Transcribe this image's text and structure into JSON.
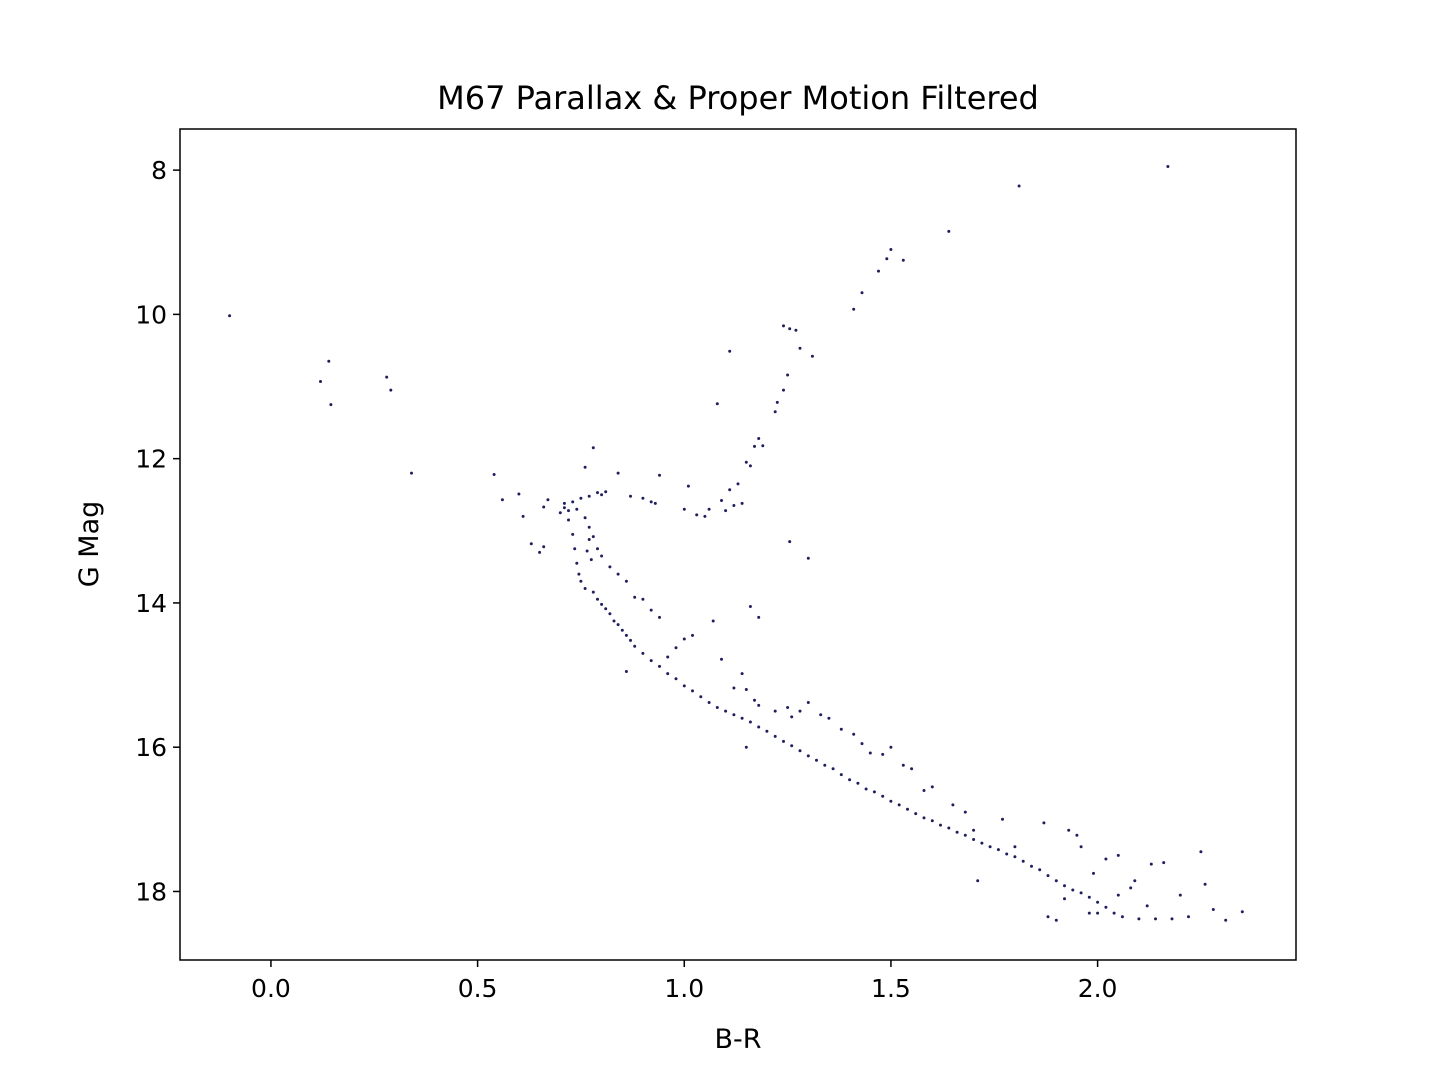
{
  "chart_data": {
    "type": "scatter",
    "title": "M67 Parallax & Proper Motion Filtered",
    "xlabel": "B-R",
    "ylabel": "G Mag",
    "xlim": [
      -0.22,
      2.48
    ],
    "ylim": [
      18.95,
      7.43
    ],
    "y_inverted": true,
    "xticks": [
      "0.0",
      "0.5",
      "1.0",
      "1.5",
      "2.0"
    ],
    "yticks": [
      "8",
      "10",
      "12",
      "14",
      "16",
      "18"
    ],
    "grid": false,
    "marker_color": "#1f1f5e",
    "series": [
      {
        "points": [
          [
            -0.1,
            10.02
          ],
          [
            0.12,
            10.93
          ],
          [
            0.14,
            10.65
          ],
          [
            0.145,
            11.25
          ],
          [
            0.28,
            10.87
          ],
          [
            0.29,
            11.05
          ],
          [
            0.34,
            12.2
          ],
          [
            0.54,
            12.22
          ],
          [
            0.56,
            12.57
          ],
          [
            0.6,
            12.49
          ],
          [
            0.61,
            12.8
          ],
          [
            0.63,
            13.18
          ],
          [
            0.65,
            13.3
          ],
          [
            0.66,
            13.22
          ],
          [
            0.66,
            12.67
          ],
          [
            0.67,
            12.57
          ],
          [
            0.7,
            12.75
          ],
          [
            0.71,
            12.68
          ],
          [
            0.73,
            12.6
          ],
          [
            0.75,
            12.55
          ],
          [
            0.77,
            12.52
          ],
          [
            0.79,
            12.47
          ],
          [
            0.81,
            12.46
          ],
          [
            0.76,
            12.12
          ],
          [
            0.78,
            11.85
          ],
          [
            0.8,
            12.5
          ],
          [
            0.84,
            12.2
          ],
          [
            0.87,
            12.52
          ],
          [
            0.9,
            12.55
          ],
          [
            0.92,
            12.6
          ],
          [
            0.93,
            12.62
          ],
          [
            0.94,
            12.23
          ],
          [
            1.01,
            12.38
          ],
          [
            1.0,
            12.7
          ],
          [
            1.03,
            12.78
          ],
          [
            1.05,
            12.8
          ],
          [
            1.06,
            12.7
          ],
          [
            1.1,
            12.72
          ],
          [
            1.12,
            12.65
          ],
          [
            1.14,
            12.62
          ],
          [
            1.09,
            12.58
          ],
          [
            1.11,
            12.43
          ],
          [
            1.13,
            12.35
          ],
          [
            1.15,
            12.05
          ],
          [
            1.16,
            12.1
          ],
          [
            1.17,
            11.83
          ],
          [
            1.18,
            11.72
          ],
          [
            1.19,
            11.82
          ],
          [
            1.22,
            11.35
          ],
          [
            1.225,
            11.22
          ],
          [
            1.24,
            11.05
          ],
          [
            1.25,
            10.84
          ],
          [
            1.08,
            11.24
          ],
          [
            1.11,
            10.51
          ],
          [
            1.24,
            10.16
          ],
          [
            1.255,
            10.2
          ],
          [
            1.27,
            10.22
          ],
          [
            1.28,
            10.47
          ],
          [
            1.31,
            10.58
          ],
          [
            1.41,
            9.93
          ],
          [
            1.43,
            9.7
          ],
          [
            1.47,
            9.4
          ],
          [
            1.49,
            9.23
          ],
          [
            1.5,
            9.1
          ],
          [
            1.53,
            9.25
          ],
          [
            1.64,
            8.85
          ],
          [
            1.81,
            8.22
          ],
          [
            2.17,
            7.95
          ],
          [
            1.255,
            13.15
          ],
          [
            1.3,
            13.38
          ],
          [
            0.72,
            12.85
          ],
          [
            0.73,
            13.05
          ],
          [
            0.735,
            13.25
          ],
          [
            0.74,
            13.45
          ],
          [
            0.745,
            13.6
          ],
          [
            0.75,
            13.7
          ],
          [
            0.76,
            13.8
          ],
          [
            0.765,
            13.28
          ],
          [
            0.77,
            13.12
          ],
          [
            0.775,
            13.4
          ],
          [
            0.78,
            13.85
          ],
          [
            0.79,
            13.95
          ],
          [
            0.8,
            14.02
          ],
          [
            0.81,
            14.08
          ],
          [
            0.82,
            14.15
          ],
          [
            0.83,
            14.25
          ],
          [
            0.84,
            14.3
          ],
          [
            0.85,
            14.38
          ],
          [
            0.86,
            14.45
          ],
          [
            0.87,
            14.52
          ],
          [
            0.88,
            14.6
          ],
          [
            0.9,
            14.7
          ],
          [
            0.92,
            14.8
          ],
          [
            0.94,
            14.88
          ],
          [
            0.96,
            14.98
          ],
          [
            0.98,
            15.05
          ],
          [
            1.0,
            15.15
          ],
          [
            1.02,
            15.22
          ],
          [
            1.04,
            15.3
          ],
          [
            1.06,
            15.38
          ],
          [
            1.08,
            15.45
          ],
          [
            1.1,
            15.5
          ],
          [
            1.12,
            15.55
          ],
          [
            1.14,
            15.6
          ],
          [
            1.16,
            15.65
          ],
          [
            1.18,
            15.72
          ],
          [
            1.2,
            15.78
          ],
          [
            1.22,
            15.85
          ],
          [
            1.24,
            15.92
          ],
          [
            1.26,
            15.98
          ],
          [
            1.28,
            16.05
          ],
          [
            1.3,
            16.12
          ],
          [
            1.32,
            16.18
          ],
          [
            1.34,
            16.25
          ],
          [
            1.36,
            16.3
          ],
          [
            1.38,
            16.38
          ],
          [
            1.4,
            16.45
          ],
          [
            1.42,
            16.5
          ],
          [
            1.44,
            16.58
          ],
          [
            1.46,
            16.62
          ],
          [
            1.48,
            16.68
          ],
          [
            1.5,
            16.75
          ],
          [
            1.52,
            16.8
          ],
          [
            1.54,
            16.86
          ],
          [
            1.56,
            16.92
          ],
          [
            1.58,
            16.98
          ],
          [
            1.6,
            17.02
          ],
          [
            1.62,
            17.08
          ],
          [
            1.64,
            17.12
          ],
          [
            1.66,
            17.18
          ],
          [
            1.68,
            17.22
          ],
          [
            1.7,
            17.28
          ],
          [
            1.72,
            17.33
          ],
          [
            1.74,
            17.38
          ],
          [
            1.76,
            17.42
          ],
          [
            1.78,
            17.48
          ],
          [
            1.8,
            17.52
          ],
          [
            1.82,
            17.58
          ],
          [
            1.84,
            17.65
          ],
          [
            1.86,
            17.7
          ],
          [
            1.88,
            17.78
          ],
          [
            1.9,
            17.85
          ],
          [
            1.92,
            17.92
          ],
          [
            1.94,
            17.98
          ],
          [
            1.96,
            18.02
          ],
          [
            1.98,
            18.08
          ],
          [
            2.0,
            18.15
          ],
          [
            2.02,
            18.22
          ],
          [
            2.04,
            18.3
          ],
          [
            2.06,
            18.35
          ],
          [
            1.9,
            18.4
          ],
          [
            2.1,
            18.38
          ],
          [
            2.14,
            18.38
          ],
          [
            2.18,
            18.38
          ],
          [
            2.22,
            18.35
          ],
          [
            2.26,
            17.9
          ],
          [
            2.25,
            17.45
          ],
          [
            2.28,
            18.25
          ],
          [
            2.31,
            18.4
          ],
          [
            2.35,
            18.28
          ],
          [
            2.2,
            18.05
          ],
          [
            2.16,
            17.6
          ],
          [
            2.13,
            17.62
          ],
          [
            2.09,
            17.85
          ],
          [
            2.05,
            17.5
          ],
          [
            2.02,
            17.55
          ],
          [
            1.99,
            17.75
          ],
          [
            1.96,
            17.38
          ],
          [
            1.95,
            17.22
          ],
          [
            1.93,
            17.15
          ],
          [
            1.87,
            17.05
          ],
          [
            1.8,
            17.38
          ],
          [
            1.77,
            17.0
          ],
          [
            1.7,
            17.15
          ],
          [
            1.68,
            16.9
          ],
          [
            1.65,
            16.8
          ],
          [
            1.6,
            16.55
          ],
          [
            1.58,
            16.6
          ],
          [
            1.55,
            16.3
          ],
          [
            1.53,
            16.25
          ],
          [
            1.5,
            16.0
          ],
          [
            1.48,
            16.1
          ],
          [
            1.45,
            16.08
          ],
          [
            1.43,
            15.95
          ],
          [
            1.41,
            15.82
          ],
          [
            1.38,
            15.75
          ],
          [
            1.35,
            15.6
          ],
          [
            1.33,
            15.55
          ],
          [
            1.3,
            15.38
          ],
          [
            1.28,
            15.5
          ],
          [
            1.26,
            15.58
          ],
          [
            1.25,
            15.45
          ],
          [
            1.22,
            15.5
          ],
          [
            1.18,
            15.42
          ],
          [
            1.15,
            15.2
          ],
          [
            1.12,
            15.18
          ],
          [
            1.09,
            14.78
          ],
          [
            1.07,
            14.25
          ],
          [
            1.02,
            14.45
          ],
          [
            1.0,
            14.5
          ],
          [
            0.98,
            14.62
          ],
          [
            0.96,
            14.75
          ],
          [
            0.94,
            14.2
          ],
          [
            0.92,
            14.1
          ],
          [
            0.9,
            13.95
          ],
          [
            0.88,
            13.92
          ],
          [
            0.86,
            13.7
          ],
          [
            0.84,
            13.6
          ],
          [
            0.82,
            13.5
          ],
          [
            0.8,
            13.35
          ],
          [
            0.79,
            13.25
          ],
          [
            0.78,
            13.08
          ],
          [
            0.77,
            12.95
          ],
          [
            0.76,
            12.82
          ],
          [
            0.72,
            12.72
          ],
          [
            0.71,
            12.62
          ],
          [
            0.74,
            12.7
          ],
          [
            0.86,
            14.95
          ],
          [
            1.15,
            16.0
          ],
          [
            1.17,
            15.35
          ],
          [
            1.14,
            14.98
          ],
          [
            1.18,
            14.2
          ],
          [
            1.16,
            14.05
          ],
          [
            1.71,
            17.85
          ],
          [
            1.88,
            18.35
          ],
          [
            2.05,
            18.05
          ],
          [
            2.0,
            18.3
          ],
          [
            2.08,
            17.95
          ],
          [
            2.12,
            18.2
          ],
          [
            1.98,
            18.3
          ],
          [
            1.92,
            18.1
          ]
        ]
      }
    ]
  }
}
